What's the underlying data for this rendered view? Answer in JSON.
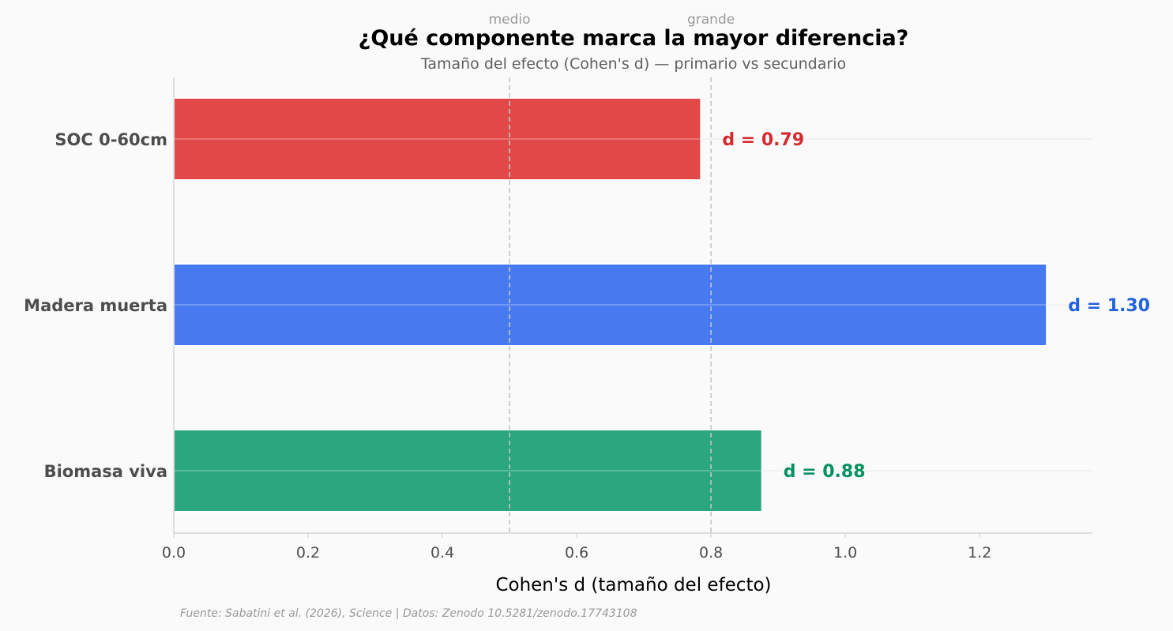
{
  "chart_data": {
    "type": "bar",
    "orientation": "horizontal",
    "title": "¿Qué componente marca la mayor diferencia?",
    "subtitle": "Tamaño del efecto (Cohen's d) — primario vs secundario",
    "xlabel": "Cohen's d (tamaño del efecto)",
    "ylabel": "",
    "xlim": [
      0,
      1.368
    ],
    "xticks": [
      "0.0",
      "0.2",
      "0.4",
      "0.6",
      "0.8",
      "1.0",
      "1.2"
    ],
    "xtick_values": [
      0,
      0.2,
      0.4,
      0.6,
      0.8,
      1.0,
      1.2
    ],
    "categories": [
      "SOC 0-60cm",
      "Madera muerta",
      "Biomasa viva"
    ],
    "values": [
      0.785,
      1.3,
      0.876
    ],
    "data_labels": [
      "d = 0.79",
      "d = 1.30",
      "d = 0.88"
    ],
    "bar_colors": [
      "#e34849",
      "#477af0",
      "#2ba680"
    ],
    "label_colors": [
      "#d52b2f",
      "#2262de",
      "#03915f"
    ],
    "reference_lines": [
      {
        "value": 0.5,
        "label": "medio"
      },
      {
        "value": 0.8,
        "label": "grande"
      }
    ],
    "source": "Fuente: Sabatini et al. (2026), Science | Datos: Zenodo 10.5281/zenodo.17743108"
  }
}
